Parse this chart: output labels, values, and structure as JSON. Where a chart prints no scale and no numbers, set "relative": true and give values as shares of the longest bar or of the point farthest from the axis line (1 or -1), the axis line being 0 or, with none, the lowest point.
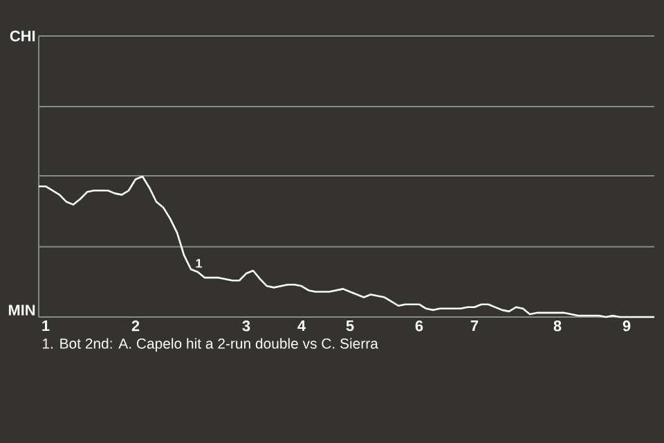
{
  "chart_data": {
    "type": "line",
    "relative": true,
    "categories": [
      null,
      "1",
      null,
      null,
      null,
      null,
      null,
      null,
      null,
      null,
      null,
      null,
      null,
      null,
      "2",
      null,
      null,
      null,
      null,
      null,
      null,
      null,
      null,
      null,
      null,
      null,
      null,
      null,
      null,
      null,
      "3",
      null,
      null,
      null,
      null,
      null,
      null,
      null,
      "4",
      null,
      null,
      null,
      null,
      null,
      null,
      "5",
      null,
      null,
      null,
      null,
      null,
      null,
      null,
      null,
      null,
      "6",
      null,
      null,
      null,
      null,
      null,
      null,
      null,
      "7",
      null,
      null,
      null,
      null,
      null,
      null,
      null,
      null,
      null,
      null,
      null,
      "8",
      null,
      null,
      null,
      null,
      null,
      null,
      null,
      null,
      null,
      "9",
      null,
      null,
      null,
      null
    ],
    "series": [
      {
        "color": "#ffffff",
        "values": [
          0.93,
          0.93,
          0.9,
          0.87,
          0.82,
          0.8,
          0.84,
          0.89,
          0.9,
          0.9,
          0.9,
          0.88,
          0.87,
          0.9,
          0.98,
          1,
          0.92,
          0.82,
          0.78,
          0.7,
          0.6,
          0.44,
          0.34,
          0.32,
          0.28,
          0.28,
          0.28,
          0.27,
          0.26,
          0.26,
          0.31,
          0.33,
          0.27,
          0.22,
          0.21,
          0.22,
          0.23,
          0.23,
          0.22,
          0.19,
          0.18,
          0.18,
          0.18,
          0.19,
          0.2,
          0.18,
          0.16,
          0.14,
          0.16,
          0.15,
          0.14,
          0.11,
          0.08,
          0.09,
          0.09,
          0.09,
          0.06,
          0.05,
          0.06,
          0.06,
          0.06,
          0.06,
          0.07,
          0.07,
          0.09,
          0.09,
          0.07,
          0.05,
          0.04,
          0.07,
          0.06,
          0.02,
          0.03,
          0.03,
          0.03,
          0.03,
          0.03,
          0.02,
          0.01,
          0.01,
          0.01,
          0.01,
          0,
          0.01,
          0,
          0,
          0,
          0,
          0,
          0
        ]
      }
    ],
    "ref_lines": [
      {
        "axis": "y",
        "value": 0.5,
        "color": "#8a8a8a"
      }
    ],
    "annotations": [
      "CHI",
      "MIN",
      {
        "text": "1",
        "y": 0.34
      },
      "1. Bot 2nd: A. Capelo hit a 2-run double vs C. Sierra"
    ]
  }
}
